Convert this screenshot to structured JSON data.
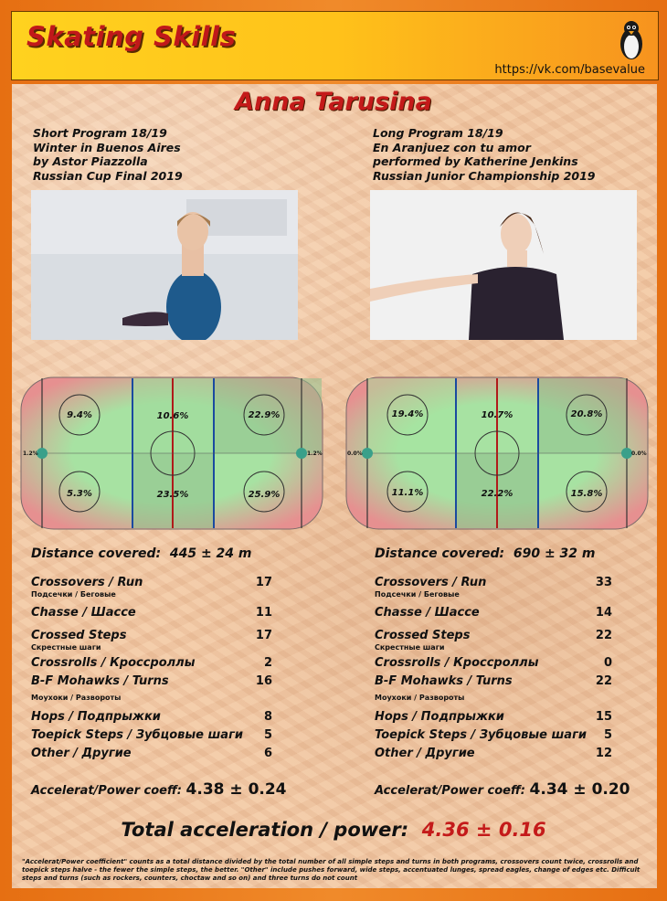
{
  "header": {
    "brand": "Skating Skills",
    "url": "https://vk.com/basevalue"
  },
  "athlete": "Anna Tarusina",
  "programs": [
    {
      "lines": [
        "Short Program 18/19",
        "Winter in Buenos Aires",
        "by Astor Piazzolla",
        "Russian Cup Final 2019"
      ],
      "zones": [
        "9.4%",
        "10.6%",
        "22.9%",
        "5.3%",
        "23.5%",
        "25.9%"
      ],
      "side_left": "1.2%",
      "side_right": "1.2%",
      "distance_label": "Distance covered:",
      "distance_value": "445 ± 24 m",
      "stats": [
        {
          "label": "Crossovers / Run",
          "sub": "Подсечки / Беговые",
          "value": "17"
        },
        {
          "label": "Chasse / Шассе",
          "sub": "",
          "value": "11"
        },
        {
          "label": "Crossed Steps",
          "sub": "Скрестные шаги",
          "value": "17"
        },
        {
          "label": "Crossrolls / Кроссроллы",
          "sub": "",
          "value": "2"
        },
        {
          "label": "B-F Mohawks / Turns",
          "sub": "Моухоки / Развороты",
          "value": "16"
        },
        {
          "label": "Hops / Подпрыжки",
          "sub": "",
          "value": "8"
        },
        {
          "label": "Toepick Steps / Зубцовые шаги",
          "sub": "",
          "value": "5"
        },
        {
          "label": "Other / Другие",
          "sub": "",
          "value": "6"
        }
      ],
      "coef_label": "Accelerat/Power coeff:",
      "coef_value": "4.38 ± 0.24"
    },
    {
      "lines": [
        "Long Program 18/19",
        "En Aranjuez con tu amor",
        "performed by Katherine Jenkins",
        "Russian Junior Championship 2019"
      ],
      "zones": [
        "19.4%",
        "10.7%",
        "20.8%",
        "11.1%",
        "22.2%",
        "15.8%"
      ],
      "side_left": "0.0%",
      "side_right": "0.0%",
      "distance_label": "Distance covered:",
      "distance_value": "690 ± 32 m",
      "stats": [
        {
          "label": "Crossovers / Run",
          "sub": "Подсечки / Беговые",
          "value": "33"
        },
        {
          "label": "Chasse / Шассе",
          "sub": "",
          "value": "14"
        },
        {
          "label": "Crossed Steps",
          "sub": "Скрестные шаги",
          "value": "22"
        },
        {
          "label": "Crossrolls / Кроссроллы",
          "sub": "",
          "value": "0"
        },
        {
          "label": "B-F Mohawks / Turns",
          "sub": "Моухоки / Развороты",
          "value": "22"
        },
        {
          "label": "Hops / Подпрыжки",
          "sub": "",
          "value": "15"
        },
        {
          "label": "Toepick Steps / Зубцовые шаги",
          "sub": "",
          "value": "5"
        },
        {
          "label": "Other / Другие",
          "sub": "",
          "value": "12"
        }
      ],
      "coef_label": "Accelerat/Power coeff:",
      "coef_value": "4.34 ± 0.20"
    }
  ],
  "total": {
    "label": "Total acceleration / power:",
    "value": "4.36 ± 0.16"
  },
  "footnote": "\"Accelerat/Power coefficient\" counts as a total distance divided by the total number of all simple steps and turns in both programs, crossovers count twice, crossrolls and toepick steps halve - the fewer the simple steps, the better. \"Other\" include pushes forward, wide steps, accentuated lunges, spread eagles, change of edges etc. Difficult steps and turns (such as rockers, counters, choctaw and so on) and three turns do not count",
  "colors": {
    "accent": "#c41a1a",
    "header_start": "#ffd21f",
    "header_end": "#f7931e",
    "rink_green": "#a6e0a0",
    "rink_red": "#e88a8a"
  }
}
